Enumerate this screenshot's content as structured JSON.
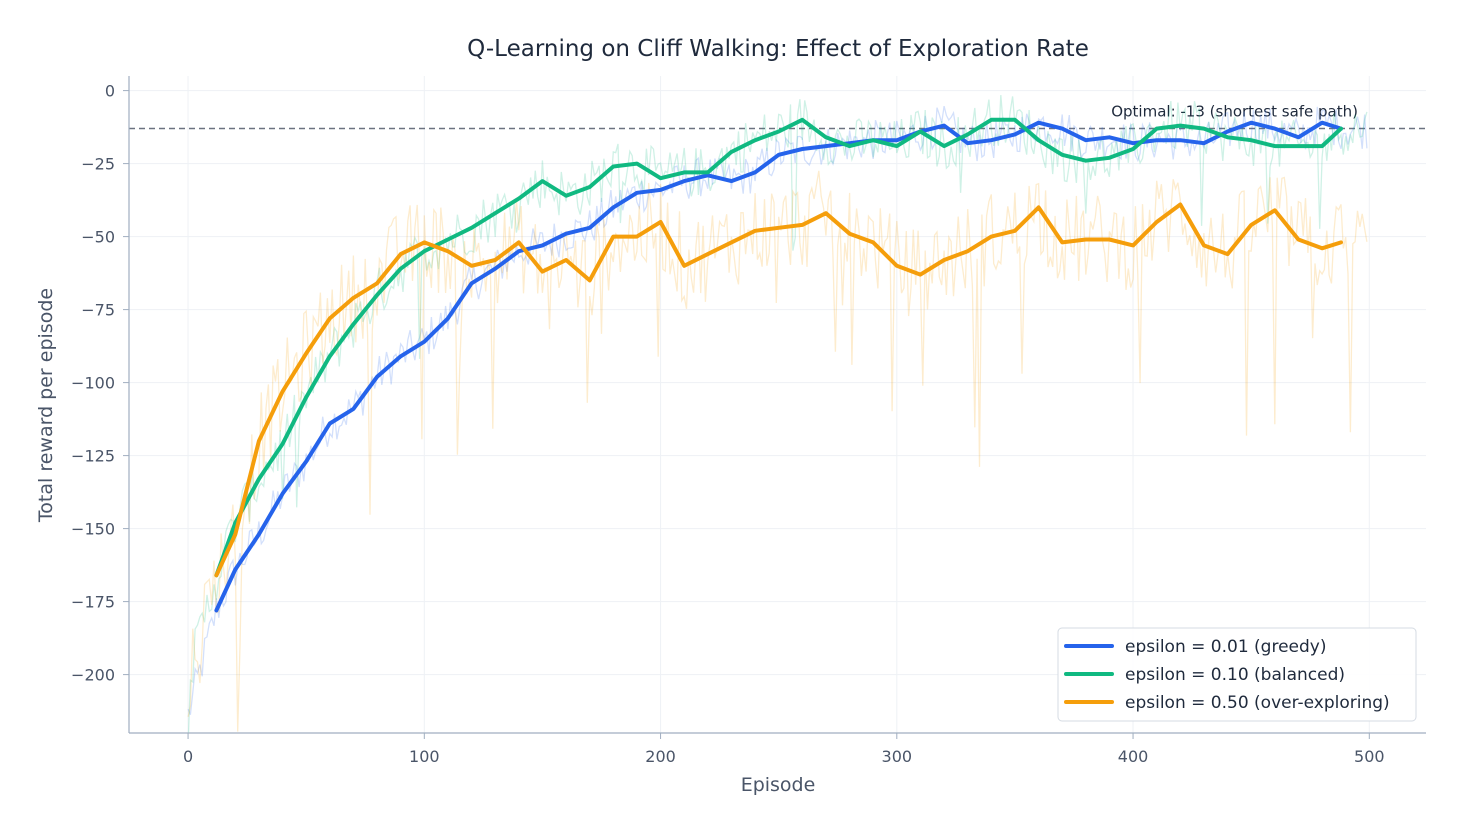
{
  "chart_data": {
    "type": "line",
    "title": "Q-Learning on Cliff Walking: Effect of Exploration Rate",
    "xlabel": "Episode",
    "ylabel": "Total reward per episode",
    "xlim": [
      -25,
      524
    ],
    "ylim": [
      -220,
      5
    ],
    "x_ticks": [
      0,
      100,
      200,
      300,
      400,
      500
    ],
    "y_ticks": [
      0,
      -25,
      -50,
      -75,
      -100,
      -125,
      -150,
      -175,
      -200
    ],
    "grid": true,
    "legend_position": "bottom-right",
    "reference_line": {
      "y": -13,
      "label": "Optimal: -13 (shortest safe path)"
    },
    "series": [
      {
        "name": "epsilon = 0.01 (greedy)",
        "color": "#2563eb",
        "smoothed": {
          "x": [
            12,
            20,
            30,
            40,
            50,
            60,
            70,
            80,
            90,
            100,
            110,
            120,
            130,
            140,
            150,
            160,
            170,
            180,
            190,
            200,
            210,
            220,
            230,
            240,
            250,
            260,
            270,
            280,
            290,
            300,
            310,
            320,
            330,
            340,
            350,
            360,
            370,
            380,
            390,
            400,
            410,
            420,
            430,
            440,
            450,
            460,
            470,
            480,
            488
          ],
          "y": [
            -178,
            -164,
            -152,
            -138,
            -127,
            -114,
            -109,
            -98,
            -91,
            -86,
            -78,
            -66,
            -61,
            -55,
            -53,
            -49,
            -47,
            -40,
            -35,
            -34,
            -31,
            -29,
            -31,
            -28,
            -22,
            -20,
            -19,
            -18,
            -17,
            -17,
            -14,
            -12,
            -18,
            -17,
            -15,
            -11,
            -13,
            -17,
            -16,
            -18,
            -17,
            -17,
            -18,
            -14,
            -11,
            -13,
            -16,
            -11,
            -13
          ]
        }
      },
      {
        "name": "epsilon = 0.10 (balanced)",
        "color": "#10b981",
        "smoothed": {
          "x": [
            12,
            20,
            30,
            40,
            50,
            60,
            70,
            80,
            90,
            100,
            110,
            120,
            130,
            140,
            150,
            160,
            170,
            180,
            190,
            200,
            210,
            220,
            230,
            240,
            250,
            260,
            270,
            280,
            290,
            300,
            310,
            320,
            330,
            340,
            350,
            360,
            370,
            380,
            390,
            400,
            410,
            420,
            430,
            440,
            450,
            460,
            470,
            480,
            488
          ],
          "y": [
            -166,
            -148,
            -133,
            -121,
            -105,
            -91,
            -80,
            -70,
            -61,
            -55,
            -51,
            -47,
            -42,
            -37,
            -31,
            -36,
            -33,
            -26,
            -25,
            -30,
            -28,
            -28,
            -21,
            -17,
            -14,
            -10,
            -16,
            -19,
            -17,
            -19,
            -14,
            -19,
            -15,
            -10,
            -10,
            -17,
            -22,
            -24,
            -23,
            -20,
            -13,
            -12,
            -13,
            -16,
            -17,
            -19,
            -19,
            -19,
            -13
          ]
        }
      },
      {
        "name": "epsilon = 0.50 (over-exploring)",
        "color": "#f59e0b",
        "smoothed": {
          "x": [
            12,
            20,
            30,
            40,
            50,
            60,
            70,
            80,
            90,
            100,
            110,
            120,
            130,
            140,
            150,
            160,
            170,
            180,
            190,
            200,
            210,
            220,
            230,
            240,
            250,
            260,
            270,
            280,
            290,
            300,
            310,
            320,
            330,
            340,
            350,
            360,
            370,
            380,
            390,
            400,
            410,
            420,
            430,
            440,
            450,
            460,
            470,
            480,
            488
          ],
          "y": [
            -166,
            -152,
            -120,
            -103,
            -90,
            -78,
            -71,
            -66,
            -56,
            -52,
            -55,
            -60,
            -58,
            -52,
            -62,
            -58,
            -65,
            -50,
            -50,
            -45,
            -60,
            -56,
            -52,
            -48,
            -47,
            -46,
            -42,
            -49,
            -52,
            -60,
            -63,
            -58,
            -55,
            -50,
            -48,
            -40,
            -52,
            -51,
            -51,
            -53,
            -45,
            -39,
            -53,
            -56,
            -46,
            -41,
            -51,
            -54,
            -52
          ]
        }
      }
    ]
  }
}
